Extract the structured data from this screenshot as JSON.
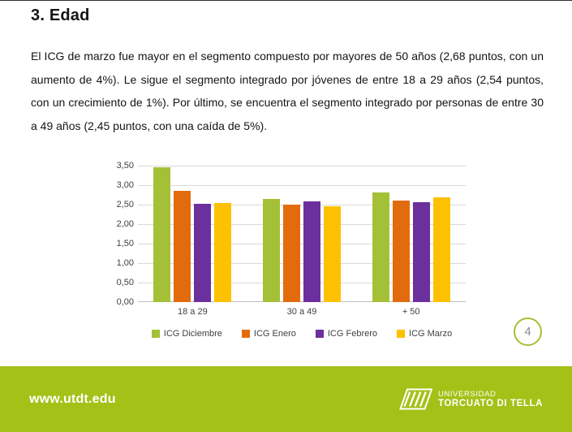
{
  "slide": {
    "title": "3. Edad",
    "body": "El ICG de marzo fue mayor en  el segmento compuesto por mayores de 50 años (2,68 puntos, con un aumento de 4%). Le sigue el segmento integrado por jóvenes de entre 18 a 29 años (2,54 puntos, con un crecimiento de 1%). Por último, se encuentra el segmento integrado por personas de entre 30 a 49 años (2,45 puntos, con una caída de 5%).",
    "page_number": "4"
  },
  "chart_data": {
    "type": "bar",
    "title": "",
    "categories": [
      "18 a 29",
      "30 a 49",
      "+ 50"
    ],
    "series": [
      {
        "name": "ICG Diciembre",
        "color": "#a4c037",
        "values": [
          3.45,
          2.64,
          2.82
        ]
      },
      {
        "name": "ICG Enero",
        "color": "#e26b0e",
        "values": [
          2.85,
          2.5,
          2.61
        ]
      },
      {
        "name": "ICG Febrero",
        "color": "#6b2f9e",
        "values": [
          2.52,
          2.58,
          2.57
        ]
      },
      {
        "name": "ICG Marzo",
        "color": "#fdc101",
        "values": [
          2.54,
          2.45,
          2.68
        ]
      }
    ],
    "ylim": [
      0,
      3.5
    ],
    "yticks": [
      "3,50",
      "3,00",
      "2,50",
      "2,00",
      "1,50",
      "1,00",
      "0,50",
      "0,00"
    ],
    "grid": true,
    "legend_position": "bottom"
  },
  "footer": {
    "url": "www.utdt.edu",
    "logo_line1": "UNIVERSIDAD",
    "logo_line2": "TORCUATO DI TELLA",
    "background": "#a3c117"
  },
  "theme": {
    "accent_green": "#a4c037",
    "page_number_color": "#8c8c8c"
  }
}
